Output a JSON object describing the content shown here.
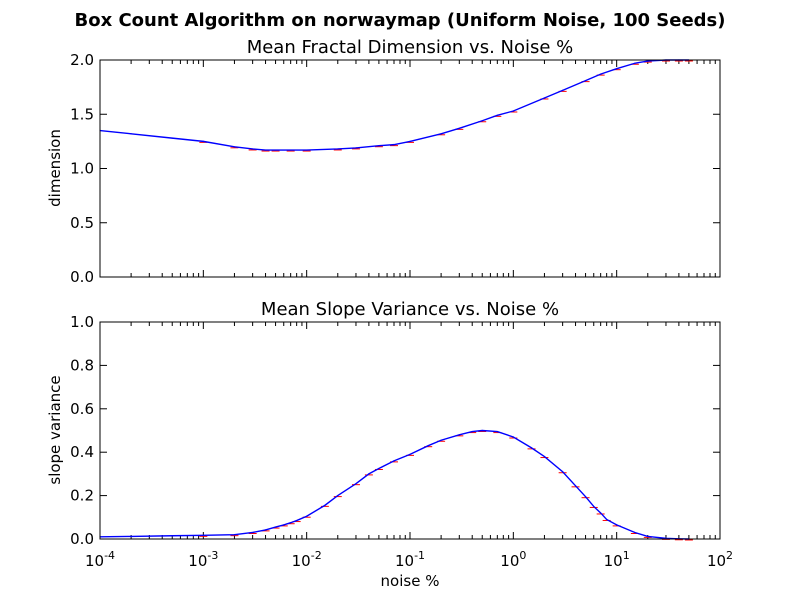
{
  "chart_data": {
    "title": "Box Count Algorithm on norwaymap (Uniform Noise, 100 Seeds)",
    "xlabel": "noise %",
    "xscale": "log",
    "xlim": [
      0.0001,
      100
    ],
    "x_tick_labels": [
      {
        "base": "10",
        "exp": "-4"
      },
      {
        "base": "10",
        "exp": "-3"
      },
      {
        "base": "10",
        "exp": "-2"
      },
      {
        "base": "10",
        "exp": "-1"
      },
      {
        "base": "10",
        "exp": "0"
      },
      {
        "base": "10",
        "exp": "1"
      },
      {
        "base": "10",
        "exp": "2"
      }
    ],
    "colors": {
      "mean_line": "#0000ff",
      "error_bars": "#ff0000"
    },
    "subplots": [
      {
        "type": "line",
        "title": "Mean Fractal Dimension vs. Noise %",
        "ylabel": "dimension",
        "ylim": [
          0,
          2.0
        ],
        "y_tick_labels": [
          "0.0",
          "0.5",
          "1.0",
          "1.5",
          "2.0"
        ],
        "x": [
          0.0001,
          0.0002,
          0.0005,
          0.001,
          0.002,
          0.003,
          0.004,
          0.005,
          0.007,
          0.01,
          0.02,
          0.03,
          0.05,
          0.07,
          0.1,
          0.2,
          0.3,
          0.5,
          0.7,
          1,
          2,
          3,
          5,
          7,
          10,
          15,
          20,
          30,
          40,
          50
        ],
        "y": [
          1.35,
          1.32,
          1.28,
          1.25,
          1.2,
          1.18,
          1.17,
          1.17,
          1.17,
          1.17,
          1.18,
          1.19,
          1.21,
          1.22,
          1.25,
          1.32,
          1.37,
          1.44,
          1.49,
          1.53,
          1.65,
          1.72,
          1.81,
          1.87,
          1.92,
          1.97,
          1.99,
          2.0,
          2.0,
          2.0
        ]
      },
      {
        "type": "line",
        "title": "Mean Slope Variance vs. Noise %",
        "ylabel": "slope variance",
        "ylim": [
          0,
          1.0
        ],
        "y_tick_labels": [
          "0.0",
          "0.2",
          "0.4",
          "0.6",
          "0.8",
          "1.0"
        ],
        "x": [
          0.0001,
          0.0002,
          0.0005,
          0.001,
          0.002,
          0.003,
          0.004,
          0.005,
          0.006,
          0.007,
          0.008,
          0.01,
          0.015,
          0.02,
          0.03,
          0.04,
          0.05,
          0.07,
          0.1,
          0.15,
          0.2,
          0.3,
          0.4,
          0.5,
          0.7,
          1,
          1.5,
          2,
          3,
          4,
          5,
          6,
          7,
          8,
          10,
          15,
          20,
          30,
          40,
          50
        ],
        "y": [
          0.01,
          0.012,
          0.015,
          0.017,
          0.02,
          0.03,
          0.042,
          0.055,
          0.065,
          0.075,
          0.085,
          0.105,
          0.155,
          0.2,
          0.255,
          0.3,
          0.325,
          0.36,
          0.39,
          0.43,
          0.455,
          0.48,
          0.495,
          0.5,
          0.495,
          0.47,
          0.42,
          0.38,
          0.31,
          0.245,
          0.195,
          0.15,
          0.12,
          0.09,
          0.065,
          0.03,
          0.012,
          0.003,
          0.001,
          0.0
        ]
      }
    ]
  }
}
